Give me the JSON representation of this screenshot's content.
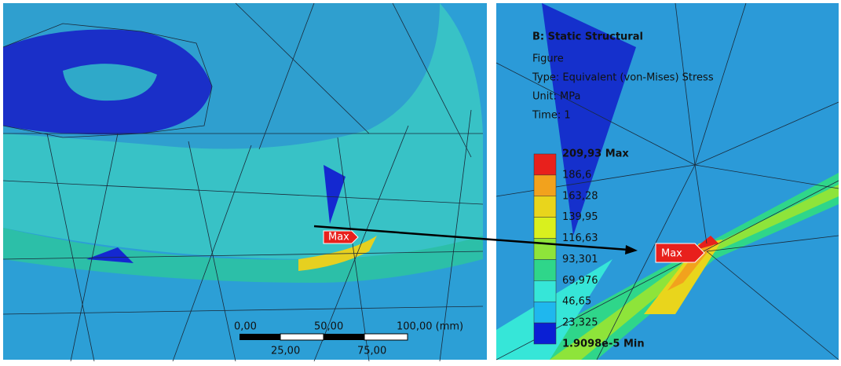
{
  "header": {
    "title": "B: Static Structural",
    "lines": [
      "Figure",
      "Type: Equivalent (von-Mises) Stress",
      "Unit: MPa",
      "Time: 1"
    ]
  },
  "legend": {
    "labels": [
      "209,93 Max",
      "186,6",
      "163,28",
      "139,95",
      "116,63",
      "93,301",
      "69,976",
      "46,65",
      "23,325",
      "1.9098e-5 Min"
    ],
    "colors": [
      "#e8201c",
      "#f2a21d",
      "#e9d51c",
      "#d9f01e",
      "#8ee43a",
      "#2fd68a",
      "#36e6d8",
      "#1fb7ee",
      "#0a1fd4"
    ]
  },
  "probes": {
    "left": "Max",
    "right": "Max"
  },
  "scale_bar": {
    "top_labels": [
      "0,00",
      "50,00",
      "100,00 (mm)"
    ],
    "bottom_labels": [
      "25,00",
      "75,00"
    ]
  }
}
